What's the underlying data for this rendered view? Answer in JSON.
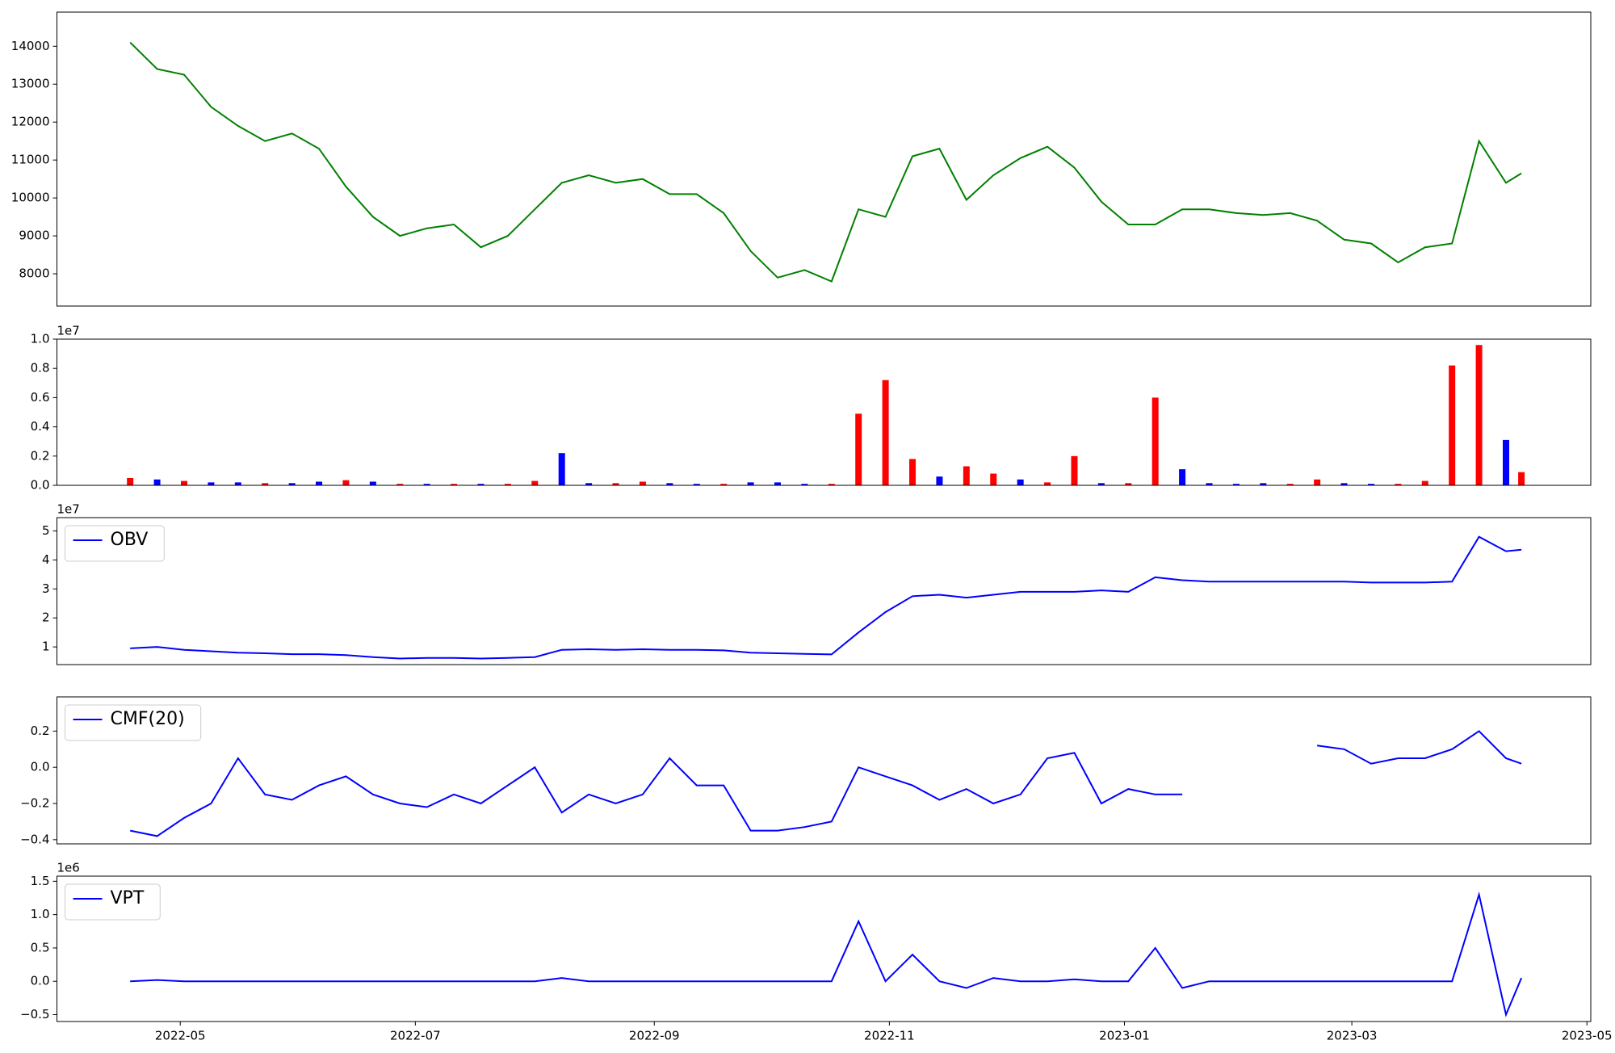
{
  "chart_data": {
    "type": "panels",
    "x": [
      "2022-04-18",
      "2022-04-25",
      "2022-05-02",
      "2022-05-09",
      "2022-05-16",
      "2022-05-23",
      "2022-05-30",
      "2022-06-06",
      "2022-06-13",
      "2022-06-20",
      "2022-06-27",
      "2022-07-04",
      "2022-07-11",
      "2022-07-18",
      "2022-07-25",
      "2022-08-01",
      "2022-08-08",
      "2022-08-15",
      "2022-08-22",
      "2022-08-29",
      "2022-09-05",
      "2022-09-12",
      "2022-09-19",
      "2022-09-26",
      "2022-10-03",
      "2022-10-10",
      "2022-10-17",
      "2022-10-24",
      "2022-10-31",
      "2022-11-07",
      "2022-11-14",
      "2022-11-21",
      "2022-11-28",
      "2022-12-05",
      "2022-12-12",
      "2022-12-19",
      "2022-12-26",
      "2023-01-02",
      "2023-01-09",
      "2023-01-16",
      "2023-01-23",
      "2023-01-30",
      "2023-02-06",
      "2023-02-13",
      "2023-02-20",
      "2023-02-27",
      "2023-03-06",
      "2023-03-13",
      "2023-03-20",
      "2023-03-27",
      "2023-04-03",
      "2023-04-10",
      "2023-04-14"
    ],
    "xlim": [
      "2022-03-30",
      "2023-05-02"
    ],
    "xticks": [
      {
        "value": "2022-05-01",
        "label": "2022-05"
      },
      {
        "value": "2022-07-01",
        "label": "2022-07"
      },
      {
        "value": "2022-09-01",
        "label": "2022-09"
      },
      {
        "value": "2022-11-01",
        "label": "2022-11"
      },
      {
        "value": "2023-01-01",
        "label": "2023-01"
      },
      {
        "value": "2023-03-01",
        "label": "2023-03"
      },
      {
        "value": "2023-05-01",
        "label": "2023-05"
      }
    ],
    "panels": [
      {
        "type": "line",
        "ylim": [
          7150,
          14900
        ],
        "yticks": [
          8000,
          9000,
          10000,
          11000,
          12000,
          13000,
          14000
        ],
        "series": [
          {
            "color": "#008000",
            "values": [
              14100,
              13400,
              13250,
              12400,
              11900,
              11500,
              11700,
              11300,
              10300,
              9500,
              9000,
              9200,
              9300,
              8700,
              9000,
              9700,
              10400,
              10600,
              10400,
              10500,
              10100,
              10100,
              9600,
              8600,
              7900,
              8100,
              7800,
              9700,
              9500,
              11100,
              11300,
              9950,
              10600,
              11050,
              11350,
              10800,
              9900,
              9300,
              9300,
              9700,
              9700,
              9600,
              9550,
              9600,
              9400,
              8900,
              8800,
              8300,
              8700,
              8800,
              11500,
              10400,
              10650
            ]
          }
        ]
      },
      {
        "type": "bar",
        "ylim": [
          0,
          10000000
        ],
        "offset_label": "1e7",
        "yticks": [
          {
            "value": 0,
            "label": "0.0"
          },
          {
            "value": 2000000,
            "label": "0.2"
          },
          {
            "value": 4000000,
            "label": "0.4"
          },
          {
            "value": 6000000,
            "label": "0.6"
          },
          {
            "value": 8000000,
            "label": "0.8"
          },
          {
            "value": 10000000,
            "label": "1.0"
          }
        ],
        "values": [
          500000,
          400000,
          300000,
          200000,
          200000,
          150000,
          150000,
          250000,
          350000,
          250000,
          100000,
          100000,
          100000,
          100000,
          100000,
          300000,
          2200000,
          150000,
          150000,
          250000,
          150000,
          100000,
          100000,
          200000,
          200000,
          100000,
          100000,
          4900000,
          7200000,
          1800000,
          600000,
          1300000,
          800000,
          400000,
          200000,
          2000000,
          150000,
          150000,
          6000000,
          1100000,
          150000,
          100000,
          150000,
          100000,
          400000,
          150000,
          100000,
          100000,
          300000,
          8200000,
          9600000,
          3100000,
          900000
        ],
        "colors": [
          "#ff0000",
          "#0000ff",
          "#ff0000",
          "#0000ff",
          "#0000ff",
          "#ff0000",
          "#0000ff",
          "#0000ff",
          "#ff0000",
          "#0000ff",
          "#ff0000",
          "#0000ff",
          "#ff0000",
          "#0000ff",
          "#ff0000",
          "#ff0000",
          "#0000ff",
          "#0000ff",
          "#ff0000",
          "#ff0000",
          "#0000ff",
          "#0000ff",
          "#ff0000",
          "#0000ff",
          "#0000ff",
          "#0000ff",
          "#ff0000",
          "#ff0000",
          "#ff0000",
          "#ff0000",
          "#0000ff",
          "#ff0000",
          "#ff0000",
          "#0000ff",
          "#ff0000",
          "#ff0000",
          "#0000ff",
          "#ff0000",
          "#ff0000",
          "#0000ff",
          "#0000ff",
          "#0000ff",
          "#0000ff",
          "#ff0000",
          "#ff0000",
          "#0000ff",
          "#0000ff",
          "#ff0000",
          "#ff0000",
          "#ff0000",
          "#ff0000",
          "#0000ff",
          "#ff0000"
        ]
      },
      {
        "type": "line",
        "ylim": [
          3900000,
          54600000
        ],
        "offset_label": "1e7",
        "legend": "upper left",
        "yticks": [
          {
            "value": 10000000,
            "label": "1"
          },
          {
            "value": 20000000,
            "label": "2"
          },
          {
            "value": 30000000,
            "label": "3"
          },
          {
            "value": 40000000,
            "label": "4"
          },
          {
            "value": 50000000,
            "label": "5"
          }
        ],
        "series": [
          {
            "name": "OBV",
            "color": "#0000ff",
            "values": [
              9500000,
              10000000,
              9000000,
              8500000,
              8000000,
              7800000,
              7500000,
              7500000,
              7200000,
              6500000,
              6000000,
              6200000,
              6200000,
              6000000,
              6200000,
              6500000,
              9000000,
              9200000,
              9000000,
              9200000,
              9000000,
              9000000,
              8800000,
              8000000,
              7800000,
              7600000,
              7400000,
              15000000,
              22000000,
              27500000,
              28000000,
              27000000,
              28000000,
              29000000,
              29000000,
              29000000,
              29500000,
              29000000,
              34000000,
              33000000,
              32500000,
              32500000,
              32500000,
              32500000,
              32500000,
              32500000,
              32200000,
              32200000,
              32200000,
              32500000,
              48000000,
              43000000,
              43500000
            ]
          }
        ]
      },
      {
        "type": "line",
        "ylim": [
          -0.423,
          0.389
        ],
        "legend": "upper left",
        "yticks": [
          {
            "value": -0.4,
            "label": "−0.4"
          },
          {
            "value": -0.2,
            "label": "−0.2"
          },
          {
            "value": 0,
            "label": "0.0"
          },
          0.2
        ],
        "series": [
          {
            "name": "CMF(20)",
            "color": "#0000ff",
            "values": [
              -0.35,
              -0.38,
              -0.28,
              -0.2,
              0.05,
              -0.15,
              -0.18,
              -0.1,
              -0.05,
              -0.15,
              -0.2,
              -0.22,
              -0.15,
              -0.2,
              -0.1,
              0.0,
              -0.25,
              -0.15,
              -0.2,
              -0.15,
              0.05,
              -0.1,
              -0.1,
              -0.35,
              -0.35,
              -0.33,
              -0.3,
              0.0,
              -0.05,
              -0.1,
              -0.18,
              -0.12,
              -0.2,
              -0.15,
              0.05,
              0.08,
              -0.2,
              -0.12,
              -0.15,
              -0.15,
              null,
              null,
              null,
              null,
              0.12,
              0.1,
              0.02,
              0.05,
              0.05,
              0.1,
              0.2,
              0.05,
              0.02
            ]
          }
        ]
      },
      {
        "type": "line",
        "ylim": [
          -603000,
          1577000
        ],
        "offset_label": "1e6",
        "legend": "upper left",
        "yticks": [
          {
            "value": -500000,
            "label": "−0.5"
          },
          {
            "value": 0,
            "label": "0.0"
          },
          {
            "value": 500000,
            "label": "0.5"
          },
          {
            "value": 1000000,
            "label": "1.0"
          },
          {
            "value": 1500000,
            "label": "1.5"
          }
        ],
        "series": [
          {
            "name": "VPT",
            "color": "#0000ff",
            "values": [
              0,
              20000,
              0,
              0,
              0,
              0,
              0,
              0,
              0,
              0,
              0,
              0,
              0,
              0,
              0,
              0,
              50000,
              0,
              0,
              0,
              0,
              0,
              0,
              0,
              0,
              0,
              0,
              900000,
              0,
              400000,
              0,
              -100000,
              50000,
              0,
              0,
              30000,
              0,
              0,
              500000,
              -100000,
              0,
              0,
              0,
              0,
              0,
              0,
              0,
              0,
              0,
              0,
              1300000,
              -500000,
              50000
            ]
          }
        ]
      }
    ]
  }
}
